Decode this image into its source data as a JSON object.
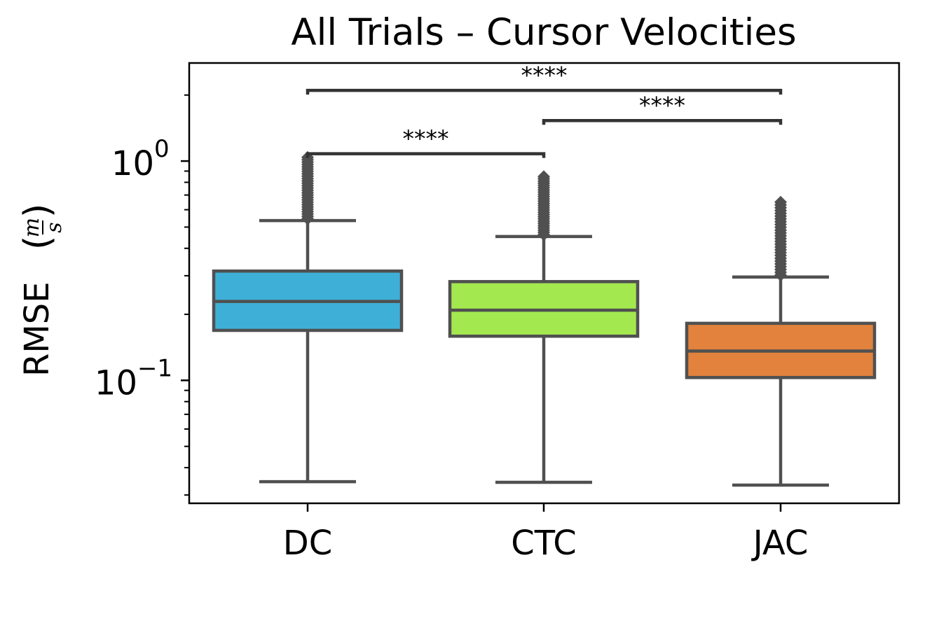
{
  "chart_data": {
    "type": "box",
    "title": "All Trials – Cursor Velocities",
    "xlabel": "",
    "ylabel": "RMSE",
    "ylabel_unit": {
      "numerator": "m",
      "denominator": "s"
    },
    "yscale": "log",
    "ylim": [
      0.0275,
      2.8
    ],
    "y_major_ticks": [
      {
        "value": 1.0,
        "base": "10",
        "exp": "0"
      },
      {
        "value": 0.1,
        "base": "10",
        "exp": "−1"
      }
    ],
    "categories": [
      "DC",
      "CTC",
      "JAC"
    ],
    "boxes": [
      {
        "category": "DC",
        "color": "#3eb0d8",
        "whisker_low": 0.0345,
        "q1": 0.169,
        "median": 0.229,
        "q3": 0.315,
        "whisker_high": 0.535,
        "outlier_max": 1.04
      },
      {
        "category": "CTC",
        "color": "#a3e84f",
        "whisker_low": 0.0343,
        "q1": 0.159,
        "median": 0.209,
        "q3": 0.282,
        "whisker_high": 0.453,
        "outlier_max": 0.85
      },
      {
        "category": "JAC",
        "color": "#e2823c",
        "whisker_low": 0.0333,
        "q1": 0.103,
        "median": 0.136,
        "q3": 0.182,
        "whisker_high": 0.296,
        "outlier_max": 0.65
      }
    ],
    "significance": [
      {
        "from": "DC",
        "to": "CTC",
        "y": 1.08,
        "label": "****"
      },
      {
        "from": "CTC",
        "to": "JAC",
        "y": 1.53,
        "label": "****"
      },
      {
        "from": "DC",
        "to": "JAC",
        "y": 2.1,
        "label": "****"
      }
    ],
    "colors": {
      "line": "#505050",
      "axis": "#000000",
      "bracket": "#333333"
    }
  }
}
